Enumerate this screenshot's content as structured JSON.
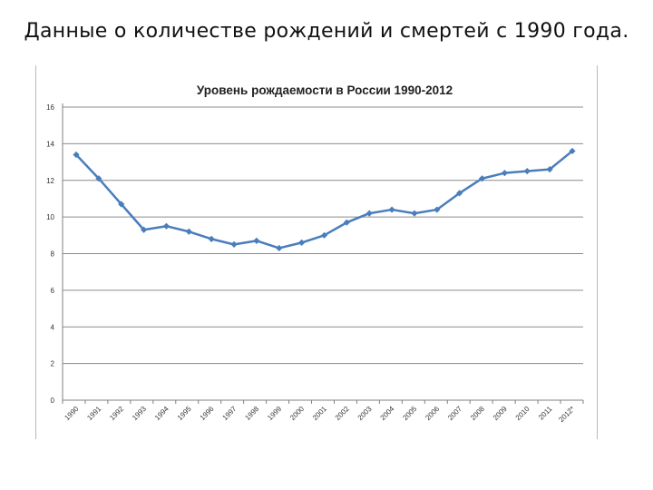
{
  "slide": {
    "title": "Данные о количестве рождений и смертей с 1990 года."
  },
  "colors": {
    "series": "#4a7ebb",
    "grid": "#8c8c8c",
    "axis": "#808080"
  },
  "chart_data": {
    "type": "line",
    "title": "Уровень рождаемости в России 1990-2012",
    "xlabel": "",
    "ylabel": "",
    "ylim": [
      0,
      16
    ],
    "yticks": [
      0,
      2,
      4,
      6,
      8,
      10,
      12,
      14,
      16
    ],
    "grid": true,
    "legend": "none",
    "categories": [
      "1990",
      "1991",
      "1992",
      "1993",
      "1994",
      "1995",
      "1996",
      "1997",
      "1998",
      "1999",
      "2000",
      "2001",
      "2002",
      "2003",
      "2004",
      "2005",
      "2006",
      "2007",
      "2008",
      "2009",
      "2010",
      "2011",
      "2012*"
    ],
    "series": [
      {
        "values": [
          13.4,
          12.1,
          10.7,
          9.3,
          9.5,
          9.2,
          8.8,
          8.5,
          8.7,
          8.3,
          8.6,
          9.0,
          9.7,
          10.2,
          10.4,
          10.2,
          10.4,
          11.3,
          12.1,
          12.4,
          12.5,
          12.6,
          13.6
        ]
      }
    ]
  }
}
